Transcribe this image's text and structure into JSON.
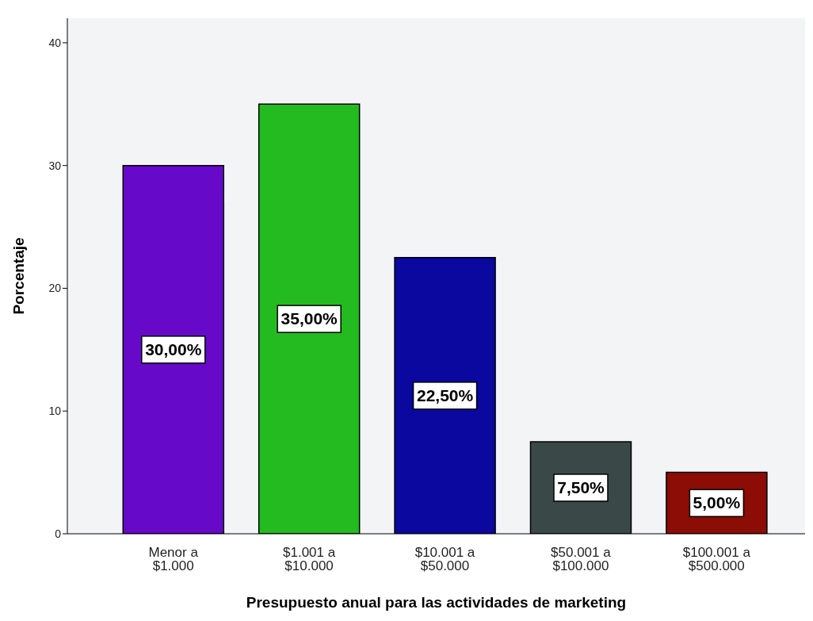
{
  "chart_data": {
    "type": "bar",
    "xlabel": "Presupuesto anual para las actividades de marketing",
    "ylabel": "Porcentaje",
    "categories": [
      "Menor a $1.000",
      "$1.001 a $10.000",
      "$10.001 a $50.000",
      "$50.001 a $100.000",
      "$100.001 a $500.000"
    ],
    "values": [
      30,
      35,
      22.5,
      7.5,
      5
    ],
    "colors": [
      "#6609c9",
      "#23bb1f",
      "#0a089f",
      "#3b4848",
      "#8c0c06"
    ],
    "value_labels": [
      "30,00%",
      "35,00%",
      "22,50%",
      "7,50%",
      "5,00%"
    ],
    "ylim": [
      0,
      42
    ],
    "yticks": [
      0,
      10,
      20,
      30,
      40
    ],
    "grid": false
  }
}
